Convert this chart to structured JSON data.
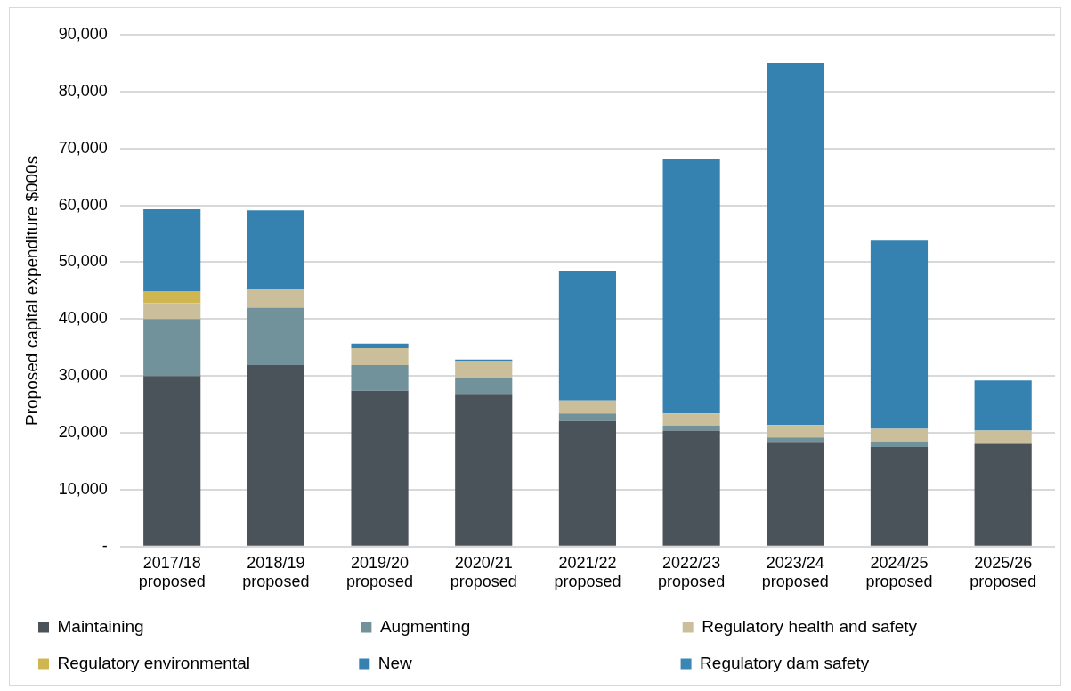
{
  "chart_data": {
    "type": "bar",
    "stacked": true,
    "ylabel": "Proposed capital expenditure $000s",
    "categories": [
      "2017/18 proposed",
      "2018/19 proposed",
      "2019/20 proposed",
      "2020/21 proposed",
      "2021/22 proposed",
      "2022/23 proposed",
      "2023/24 proposed",
      "2024/25 proposed",
      "2025/26 proposed"
    ],
    "series": [
      {
        "name": "Maintaining",
        "color": "#4a525a",
        "values": [
          30000,
          31900,
          27400,
          26700,
          22100,
          20400,
          18400,
          17500,
          18000
        ]
      },
      {
        "name": "Augmenting",
        "color": "#71929a",
        "values": [
          10000,
          10100,
          4500,
          3000,
          1300,
          900,
          800,
          1000,
          300
        ]
      },
      {
        "name": "Regulatory health and safety",
        "color": "#cbbf9b",
        "values": [
          2800,
          3300,
          3000,
          2900,
          2300,
          2100,
          2200,
          2200,
          2100
        ]
      },
      {
        "name": "Regulatory environmental",
        "color": "#cfb651",
        "values": [
          2100,
          0,
          0,
          0,
          0,
          0,
          0,
          0,
          0
        ]
      },
      {
        "name": "New",
        "color": "#3582b0",
        "values": [
          14400,
          13800,
          800,
          300,
          22800,
          44700,
          63600,
          33100,
          8800
        ]
      },
      {
        "name": "Regulatory dam safety",
        "color": "#3a86b4",
        "values": [
          0,
          0,
          0,
          0,
          0,
          0,
          0,
          0,
          0
        ]
      }
    ],
    "ylim": [
      0,
      90000
    ],
    "yticks": [
      {
        "value": 0,
        "label": "-"
      },
      {
        "value": 10000,
        "label": "10,000"
      },
      {
        "value": 20000,
        "label": "20,000"
      },
      {
        "value": 30000,
        "label": "30,000"
      },
      {
        "value": 40000,
        "label": "40,000"
      },
      {
        "value": 50000,
        "label": "50,000"
      },
      {
        "value": 60000,
        "label": "60,000"
      },
      {
        "value": 70000,
        "label": "70,000"
      },
      {
        "value": 80000,
        "label": "80,000"
      },
      {
        "value": 90000,
        "label": "90,000"
      }
    ],
    "grid": "y",
    "legend": "bottom"
  }
}
